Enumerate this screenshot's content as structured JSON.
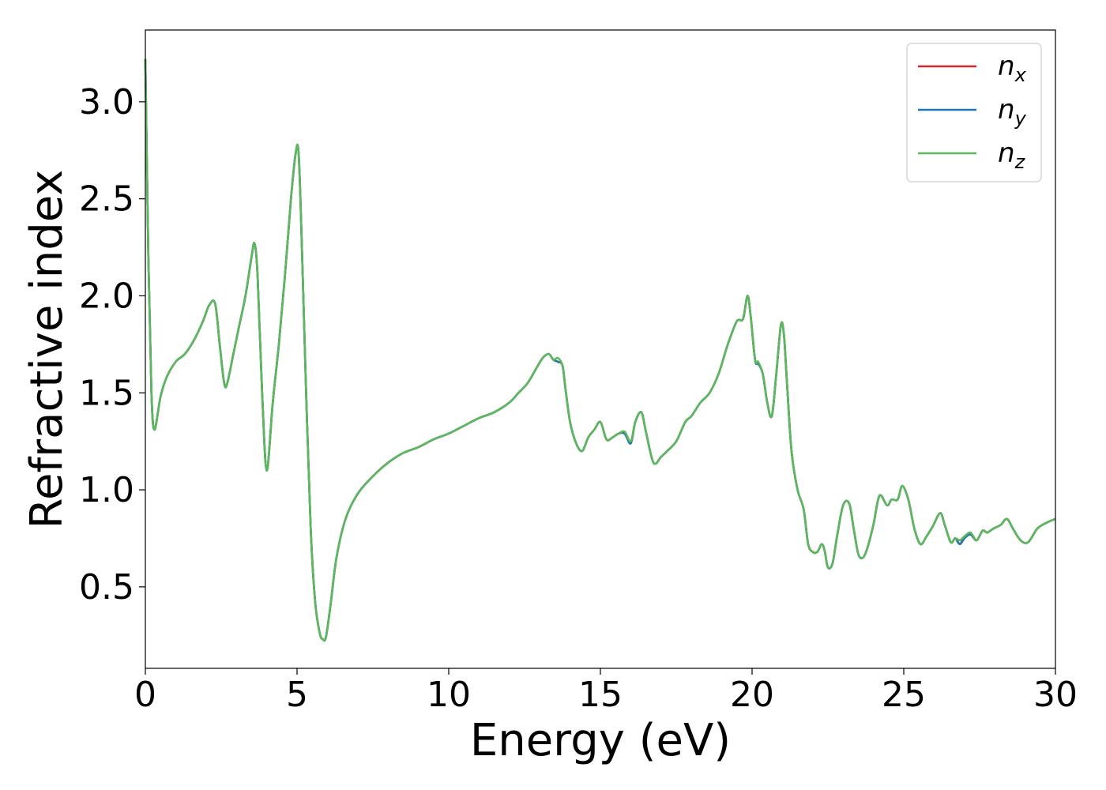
{
  "chart_data": {
    "type": "line",
    "title": "",
    "xlabel": "Energy (eV)",
    "ylabel": "Refractive index",
    "xlim": [
      0,
      30
    ],
    "ylim": [
      0.08,
      3.37
    ],
    "xticks": [
      0,
      5,
      10,
      15,
      20,
      25,
      30
    ],
    "xtick_labels": [
      "0",
      "5",
      "10",
      "15",
      "20",
      "25",
      "30"
    ],
    "yticks": [
      0.5,
      1.0,
      1.5,
      2.0,
      2.5,
      3.0
    ],
    "ytick_labels": [
      "0.5",
      "1.0",
      "1.5",
      "2.0",
      "2.5",
      "3.0"
    ],
    "grid": false,
    "legend_position": "top-right",
    "x": [
      0,
      0.1,
      0.2,
      0.3,
      0.5,
      0.7,
      1.0,
      1.3,
      1.6,
      1.9,
      2.1,
      2.3,
      2.45,
      2.6,
      2.7,
      2.9,
      3.1,
      3.3,
      3.5,
      3.6,
      3.7,
      3.85,
      4.0,
      4.2,
      4.4,
      4.6,
      4.8,
      4.95,
      5.05,
      5.15,
      5.3,
      5.45,
      5.6,
      5.75,
      5.85,
      5.95,
      6.1,
      6.3,
      6.6,
      7.0,
      7.5,
      8.0,
      8.5,
      9.0,
      9.5,
      10.0,
      10.5,
      11.0,
      11.5,
      12.0,
      12.3,
      12.6,
      12.9,
      13.1,
      13.3,
      13.45,
      13.6,
      13.75,
      13.85,
      14.0,
      14.2,
      14.4,
      14.6,
      14.8,
      15.0,
      15.2,
      15.4,
      15.6,
      15.8,
      16.0,
      16.15,
      16.35,
      16.5,
      16.75,
      17.0,
      17.2,
      17.5,
      17.8,
      18.0,
      18.3,
      18.6,
      18.9,
      19.2,
      19.5,
      19.7,
      19.85,
      19.95,
      20.1,
      20.2,
      20.35,
      20.5,
      20.65,
      20.8,
      20.95,
      21.05,
      21.15,
      21.3,
      21.5,
      21.7,
      21.85,
      22.0,
      22.15,
      22.3,
      22.4,
      22.5,
      22.65,
      22.8,
      23.0,
      23.2,
      23.35,
      23.5,
      23.65,
      23.8,
      24.0,
      24.2,
      24.45,
      24.6,
      24.8,
      24.95,
      25.15,
      25.35,
      25.55,
      25.75,
      25.95,
      26.2,
      26.35,
      26.55,
      26.7,
      26.85,
      27.0,
      27.2,
      27.4,
      27.6,
      27.75,
      27.95,
      28.2,
      28.4,
      28.6,
      28.85,
      29.1,
      29.4,
      29.7,
      30.0
    ],
    "series": [
      {
        "name": "n_x",
        "color": "#d62728",
        "values": [
          3.22,
          2.2,
          1.5,
          1.31,
          1.48,
          1.58,
          1.66,
          1.7,
          1.77,
          1.87,
          1.95,
          1.96,
          1.75,
          1.55,
          1.55,
          1.7,
          1.85,
          2.0,
          2.2,
          2.27,
          2.1,
          1.5,
          1.1,
          1.45,
          1.75,
          2.1,
          2.5,
          2.73,
          2.74,
          2.3,
          1.5,
          0.8,
          0.42,
          0.26,
          0.23,
          0.24,
          0.4,
          0.65,
          0.85,
          0.98,
          1.07,
          1.14,
          1.19,
          1.22,
          1.26,
          1.29,
          1.33,
          1.37,
          1.4,
          1.45,
          1.5,
          1.55,
          1.63,
          1.68,
          1.7,
          1.67,
          1.66,
          1.64,
          1.52,
          1.35,
          1.24,
          1.2,
          1.27,
          1.31,
          1.35,
          1.26,
          1.27,
          1.29,
          1.29,
          1.24,
          1.35,
          1.4,
          1.3,
          1.14,
          1.17,
          1.2,
          1.25,
          1.35,
          1.38,
          1.45,
          1.5,
          1.6,
          1.75,
          1.87,
          1.88,
          2.0,
          1.9,
          1.67,
          1.65,
          1.6,
          1.45,
          1.38,
          1.6,
          1.85,
          1.8,
          1.55,
          1.2,
          1.0,
          0.9,
          0.72,
          0.68,
          0.68,
          0.72,
          0.68,
          0.6,
          0.62,
          0.76,
          0.92,
          0.93,
          0.8,
          0.67,
          0.65,
          0.7,
          0.82,
          0.97,
          0.92,
          0.95,
          0.95,
          1.02,
          0.95,
          0.8,
          0.72,
          0.76,
          0.81,
          0.88,
          0.82,
          0.73,
          0.75,
          0.72,
          0.76,
          0.77,
          0.74,
          0.79,
          0.78,
          0.8,
          0.82,
          0.85,
          0.8,
          0.74,
          0.73,
          0.8,
          0.83,
          0.85
        ]
      },
      {
        "name": "n_y",
        "color": "#1f77b4",
        "values": [
          3.22,
          2.2,
          1.5,
          1.31,
          1.48,
          1.58,
          1.66,
          1.7,
          1.77,
          1.87,
          1.95,
          1.96,
          1.75,
          1.55,
          1.55,
          1.7,
          1.85,
          2.0,
          2.2,
          2.27,
          2.1,
          1.5,
          1.1,
          1.45,
          1.75,
          2.1,
          2.5,
          2.73,
          2.74,
          2.3,
          1.5,
          0.8,
          0.42,
          0.26,
          0.23,
          0.24,
          0.4,
          0.65,
          0.85,
          0.98,
          1.07,
          1.14,
          1.19,
          1.22,
          1.26,
          1.29,
          1.33,
          1.37,
          1.4,
          1.45,
          1.5,
          1.55,
          1.63,
          1.68,
          1.7,
          1.67,
          1.66,
          1.64,
          1.52,
          1.35,
          1.24,
          1.2,
          1.27,
          1.31,
          1.35,
          1.26,
          1.27,
          1.29,
          1.29,
          1.24,
          1.35,
          1.4,
          1.3,
          1.14,
          1.17,
          1.2,
          1.25,
          1.35,
          1.38,
          1.45,
          1.5,
          1.6,
          1.75,
          1.87,
          1.88,
          2.0,
          1.9,
          1.67,
          1.65,
          1.6,
          1.45,
          1.38,
          1.6,
          1.85,
          1.8,
          1.55,
          1.2,
          1.0,
          0.9,
          0.72,
          0.68,
          0.68,
          0.72,
          0.68,
          0.6,
          0.62,
          0.76,
          0.92,
          0.93,
          0.8,
          0.67,
          0.65,
          0.7,
          0.82,
          0.97,
          0.92,
          0.95,
          0.95,
          1.02,
          0.95,
          0.8,
          0.72,
          0.76,
          0.81,
          0.88,
          0.82,
          0.73,
          0.75,
          0.72,
          0.75,
          0.77,
          0.74,
          0.79,
          0.78,
          0.8,
          0.82,
          0.85,
          0.8,
          0.74,
          0.73,
          0.8,
          0.83,
          0.85
        ]
      },
      {
        "name": "n_z",
        "color": "#5cb85c",
        "values": [
          3.22,
          2.2,
          1.5,
          1.31,
          1.48,
          1.58,
          1.66,
          1.7,
          1.77,
          1.87,
          1.95,
          1.96,
          1.75,
          1.55,
          1.55,
          1.7,
          1.85,
          2.0,
          2.2,
          2.27,
          2.1,
          1.5,
          1.1,
          1.45,
          1.75,
          2.1,
          2.5,
          2.73,
          2.74,
          2.3,
          1.5,
          0.8,
          0.42,
          0.26,
          0.23,
          0.24,
          0.4,
          0.65,
          0.85,
          0.98,
          1.07,
          1.14,
          1.19,
          1.22,
          1.26,
          1.29,
          1.33,
          1.37,
          1.4,
          1.45,
          1.5,
          1.55,
          1.63,
          1.68,
          1.7,
          1.67,
          1.68,
          1.64,
          1.52,
          1.35,
          1.24,
          1.2,
          1.27,
          1.31,
          1.35,
          1.26,
          1.27,
          1.29,
          1.3,
          1.25,
          1.35,
          1.4,
          1.3,
          1.14,
          1.17,
          1.2,
          1.25,
          1.35,
          1.38,
          1.45,
          1.5,
          1.6,
          1.75,
          1.87,
          1.88,
          2.0,
          1.9,
          1.67,
          1.66,
          1.6,
          1.45,
          1.38,
          1.6,
          1.85,
          1.8,
          1.55,
          1.2,
          1.0,
          0.9,
          0.72,
          0.68,
          0.68,
          0.72,
          0.68,
          0.6,
          0.62,
          0.76,
          0.92,
          0.93,
          0.8,
          0.67,
          0.65,
          0.7,
          0.82,
          0.97,
          0.92,
          0.95,
          0.95,
          1.02,
          0.95,
          0.8,
          0.72,
          0.76,
          0.81,
          0.88,
          0.82,
          0.73,
          0.75,
          0.74,
          0.76,
          0.78,
          0.74,
          0.79,
          0.78,
          0.8,
          0.82,
          0.85,
          0.8,
          0.74,
          0.73,
          0.8,
          0.83,
          0.85
        ]
      }
    ],
    "legend": [
      {
        "base": "n",
        "sub": "x",
        "color": "#d62728"
      },
      {
        "base": "n",
        "sub": "y",
        "color": "#1f77b4"
      },
      {
        "base": "n",
        "sub": "z",
        "color": "#5cb85c"
      }
    ]
  }
}
